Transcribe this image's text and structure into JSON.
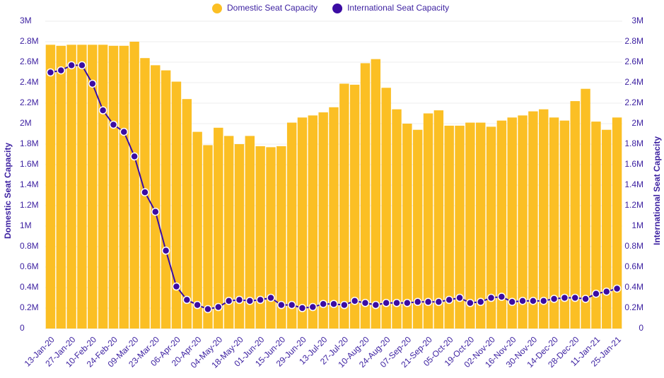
{
  "chart_data": {
    "type": "bar-line",
    "y_label": "Domestic Seat Capacity",
    "y2_label": "International Seat Capacity",
    "categories": [
      "13-Jan-20",
      null,
      "27-Jan-20",
      null,
      "10-Feb-20",
      null,
      "24-Feb-20",
      null,
      "09-Mar-20",
      null,
      "23-Mar-20",
      null,
      "06-Apr-20",
      null,
      "20-Apr-20",
      null,
      "04-May-20",
      null,
      "18-May-20",
      null,
      "01-Jun-20",
      null,
      "15-Jun-20",
      null,
      "29-Jun-20",
      null,
      "13-Jul-20",
      null,
      "27-Jul-20",
      null,
      "10-Aug-20",
      null,
      "24-Aug-20",
      null,
      "07-Sep-20",
      null,
      "21-Sep-20",
      null,
      "05-Oct-20",
      null,
      "19-Oct-20",
      null,
      "02-Nov-20",
      null,
      "16-Nov-20",
      null,
      "30-Nov-20",
      null,
      "14-Dec-20",
      null,
      "28-Dec-20",
      null,
      "11-Jan-21",
      null,
      "25-Jan-21"
    ],
    "series": [
      {
        "name": "Domestic Seat Capacity",
        "color": "#fbbf24",
        "type": "bar",
        "values": [
          2770000,
          2760000,
          2770000,
          2770000,
          2770000,
          2770000,
          2760000,
          2760000,
          2800000,
          2640000,
          2570000,
          2520000,
          2410000,
          2240000,
          1920000,
          1790000,
          1960000,
          1880000,
          1800000,
          1880000,
          1780000,
          1770000,
          1780000,
          2010000,
          2060000,
          2080000,
          2110000,
          2160000,
          2390000,
          2380000,
          2590000,
          2630000,
          2350000,
          2140000,
          2000000,
          1940000,
          2100000,
          2130000,
          1980000,
          1980000,
          2010000,
          2010000,
          1970000,
          2030000,
          2060000,
          2080000,
          2120000,
          2140000,
          2060000,
          2030000,
          2220000,
          2340000,
          2020000,
          1940000,
          2060000
        ]
      },
      {
        "name": "International Seat Capacity",
        "color": "#3b0ca3",
        "type": "line",
        "axis": "y2",
        "values": [
          2500000,
          2520000,
          2570000,
          2570000,
          2390000,
          2130000,
          1990000,
          1920000,
          1680000,
          1330000,
          1140000,
          760000,
          410000,
          280000,
          230000,
          190000,
          210000,
          270000,
          280000,
          270000,
          280000,
          300000,
          230000,
          230000,
          200000,
          210000,
          240000,
          240000,
          230000,
          270000,
          250000,
          230000,
          250000,
          250000,
          250000,
          260000,
          260000,
          260000,
          280000,
          300000,
          250000,
          260000,
          300000,
          310000,
          260000,
          270000,
          270000,
          270000,
          290000,
          300000,
          300000,
          290000,
          340000,
          360000,
          390000
        ]
      }
    ],
    "ylim": [
      0,
      3000000
    ],
    "yticks": [
      0,
      {
        "value": 200000,
        "label": "0.2M"
      },
      {
        "value": 400000,
        "label": "0.4M"
      },
      {
        "value": 600000,
        "label": "0.6M"
      },
      {
        "value": 800000,
        "label": "0.8M"
      },
      {
        "value": 1000000,
        "label": "1M"
      },
      {
        "value": 1200000,
        "label": "1.2M"
      },
      {
        "value": 1400000,
        "label": "1.4M"
      },
      {
        "value": 1600000,
        "label": "1.6M"
      },
      {
        "value": 1800000,
        "label": "1.8M"
      },
      {
        "value": 2000000,
        "label": "2M"
      },
      {
        "value": 2200000,
        "label": "2.2M"
      },
      {
        "value": 2400000,
        "label": "2.4M"
      },
      {
        "value": 2600000,
        "label": "2.6M"
      },
      {
        "value": 2800000,
        "label": "2.8M"
      },
      {
        "value": 3000000,
        "label": "3M"
      }
    ],
    "y2lim": [
      0,
      3000000
    ],
    "y2ticks": [
      0,
      {
        "value": 200000,
        "label": "0.2M"
      },
      {
        "value": 400000,
        "label": "0.4M"
      },
      {
        "value": 600000,
        "label": "0.6M"
      },
      {
        "value": 800000,
        "label": "0.8M"
      },
      {
        "value": 1000000,
        "label": "1M"
      },
      {
        "value": 1200000,
        "label": "1.2M"
      },
      {
        "value": 1400000,
        "label": "1.4M"
      },
      {
        "value": 1600000,
        "label": "1.6M"
      },
      {
        "value": 1800000,
        "label": "1.8M"
      },
      {
        "value": 2000000,
        "label": "2M"
      },
      {
        "value": 2200000,
        "label": "2.2M"
      },
      {
        "value": 2400000,
        "label": "2.4M"
      },
      {
        "value": 2600000,
        "label": "2.6M"
      },
      {
        "value": 2800000,
        "label": "2.8M"
      },
      {
        "value": 3000000,
        "label": "3M"
      }
    ],
    "grid": true,
    "legend": "top"
  }
}
